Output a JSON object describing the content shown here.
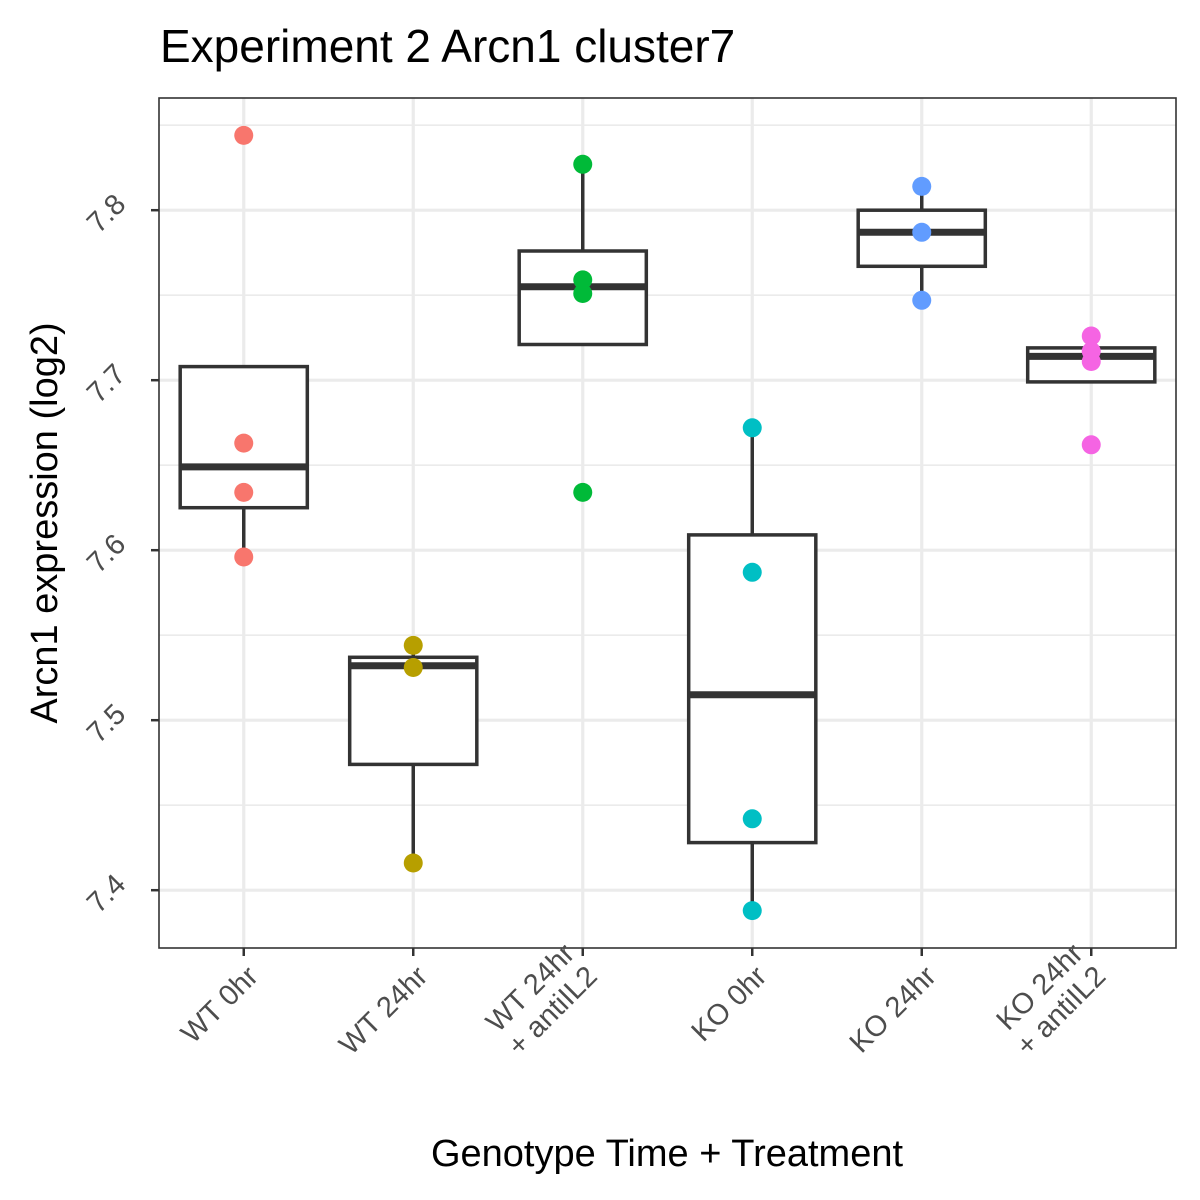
{
  "chart_data": {
    "type": "box",
    "title": "Experiment 2 Arcn1 cluster7",
    "xlabel": "Genotype Time + Treatment",
    "ylabel": "Arcn1 expression (log2)",
    "ylim": [
      7.366,
      7.866
    ],
    "yticks": [
      7.4,
      7.5,
      7.6,
      7.7,
      7.8
    ],
    "ytick_labels": [
      "7.4",
      "7.5",
      "7.6",
      "7.7",
      "7.8"
    ],
    "grid": true,
    "legend": "none",
    "categories": [
      {
        "label_lines": [
          "WT 0hr"
        ],
        "color": "#F8766D",
        "box": {
          "lower_whisker": 7.596,
          "q1": 7.625,
          "median": 7.649,
          "q3": 7.708,
          "upper_whisker": 7.708
        },
        "points": [
          7.844,
          7.663,
          7.634,
          7.596
        ]
      },
      {
        "label_lines": [
          "WT 24hr"
        ],
        "color": "#B79F00",
        "box": {
          "lower_whisker": 7.416,
          "q1": 7.474,
          "median": 7.532,
          "q3": 7.537,
          "upper_whisker": 7.544
        },
        "points": [
          7.544,
          7.531,
          7.416
        ]
      },
      {
        "label_lines": [
          "WT 24hr",
          "+ antiIL2"
        ],
        "color": "#00BA38",
        "box": {
          "lower_whisker": 7.721,
          "q1": 7.721,
          "median": 7.755,
          "q3": 7.776,
          "upper_whisker": 7.827
        },
        "points": [
          7.827,
          7.759,
          7.751,
          7.634
        ]
      },
      {
        "label_lines": [
          "KO 0hr"
        ],
        "color": "#00BFC4",
        "box": {
          "lower_whisker": 7.388,
          "q1": 7.428,
          "median": 7.515,
          "q3": 7.609,
          "upper_whisker": 7.672
        },
        "points": [
          7.672,
          7.587,
          7.442,
          7.388
        ]
      },
      {
        "label_lines": [
          "KO 24hr"
        ],
        "color": "#619CFF",
        "box": {
          "lower_whisker": 7.747,
          "q1": 7.767,
          "median": 7.787,
          "q3": 7.8,
          "upper_whisker": 7.814
        },
        "points": [
          7.814,
          7.787,
          7.747
        ]
      },
      {
        "label_lines": [
          "KO 24hr",
          "+ antiIL2"
        ],
        "color": "#F564E3",
        "box": {
          "lower_whisker": 7.699,
          "q1": 7.699,
          "median": 7.714,
          "q3": 7.719,
          "upper_whisker": 7.719
        },
        "points": [
          7.726,
          7.717,
          7.711,
          7.662
        ]
      }
    ]
  }
}
